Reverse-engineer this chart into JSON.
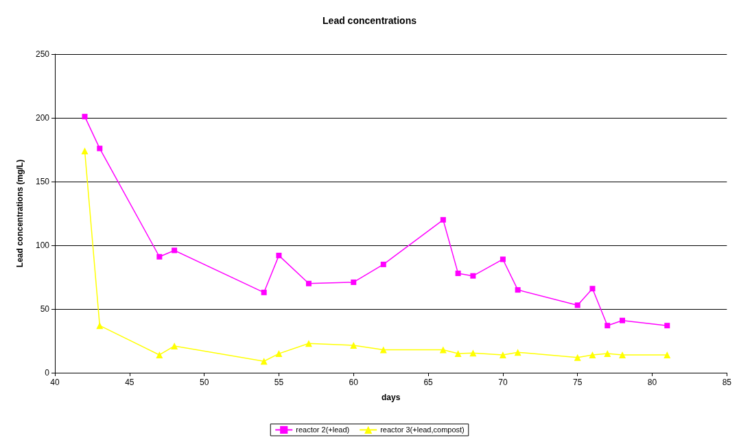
{
  "chart_data": {
    "type": "line",
    "title": "Lead concentrations",
    "xlabel": "days",
    "ylabel": "Lead concentrations (mg/L)",
    "x": [
      42,
      43,
      47,
      48,
      54,
      55,
      57,
      60,
      62,
      66,
      67,
      68,
      70,
      71,
      75,
      76,
      77,
      78,
      81
    ],
    "series": [
      {
        "name": "reactor 2(+lead)",
        "color": "#ff00ff",
        "marker": "square",
        "values": [
          201,
          176,
          91,
          96,
          63,
          92,
          70,
          71,
          85,
          120,
          78,
          76,
          89,
          65,
          53,
          66,
          37,
          41,
          37
        ]
      },
      {
        "name": "reactor 3(+lead,compost)",
        "color": "#ffff00",
        "marker": "triangle",
        "values": [
          174,
          37,
          14,
          21,
          9,
          15,
          23,
          21.5,
          18,
          18,
          15,
          15.5,
          14,
          16,
          12,
          14,
          15,
          14,
          14
        ]
      }
    ],
    "xlim": [
      40,
      85
    ],
    "xticks": [
      40,
      45,
      50,
      55,
      60,
      65,
      70,
      75,
      80,
      85
    ],
    "ylim": [
      0,
      250
    ],
    "yticks": [
      0,
      50,
      100,
      150,
      200,
      250
    ],
    "grid": "y",
    "legend": "bottom"
  }
}
